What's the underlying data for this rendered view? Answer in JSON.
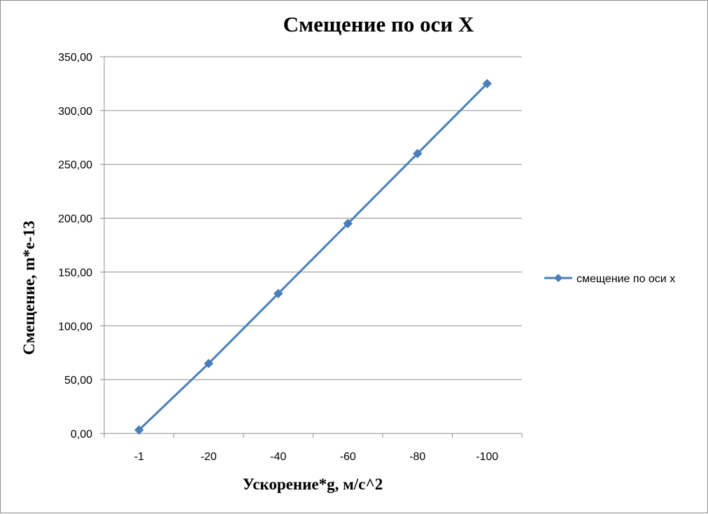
{
  "chart_data": {
    "type": "line",
    "title": "Смещение по оси X",
    "xlabel": "Ускорение*g, м/с^2",
    "ylabel": "Смещение, m*e-13",
    "categories": [
      "-1",
      "-20",
      "-40",
      "-60",
      "-80",
      "-100"
    ],
    "series": [
      {
        "name": "смещение по оси x",
        "values": [
          3.25,
          65,
          130,
          195,
          260,
          325
        ],
        "color": "#4a7ebb"
      }
    ],
    "ylim": [
      0,
      350
    ],
    "yticks": [
      "0,00",
      "50,00",
      "100,00",
      "150,00",
      "200,00",
      "250,00",
      "300,00",
      "350,00"
    ],
    "grid": true,
    "legend_position": "right",
    "marker": "diamond"
  }
}
